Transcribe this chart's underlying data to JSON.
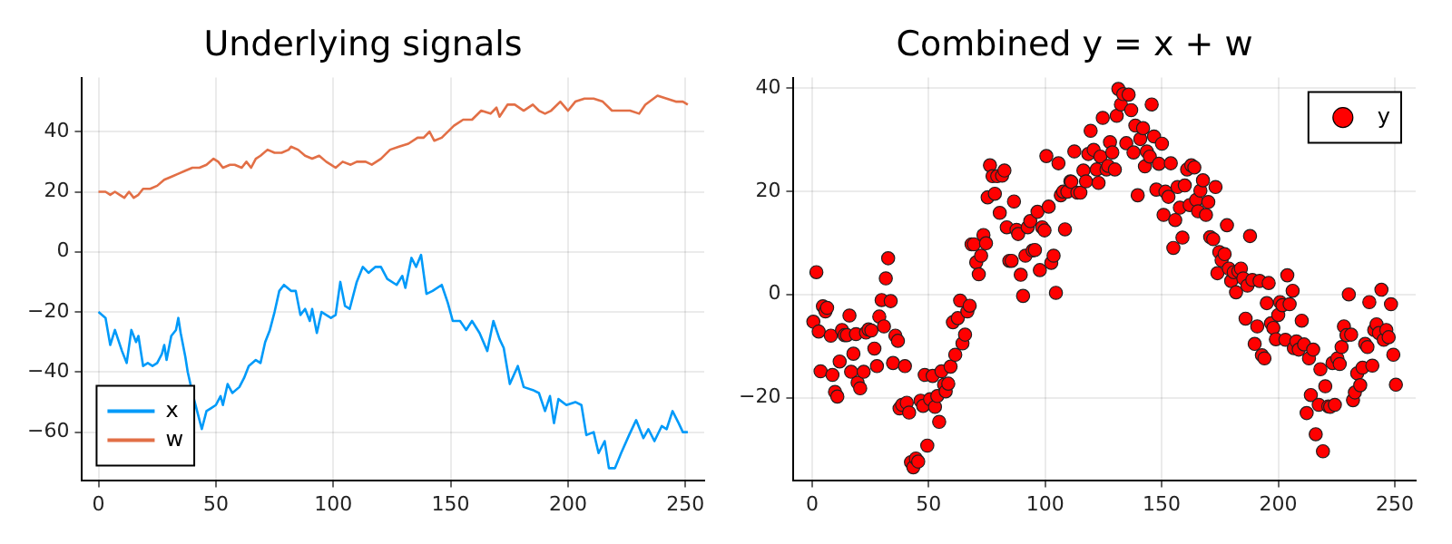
{
  "chart_data": [
    {
      "type": "line",
      "title": "Underlying signals",
      "xlim": [
        -7,
        258
      ],
      "xticks": [
        0,
        50,
        100,
        150,
        200,
        250
      ],
      "ylim": [
        -76,
        58
      ],
      "yticks": [
        {
          "value": -60,
          "label": "−60"
        },
        {
          "value": -40,
          "label": "−40"
        },
        {
          "value": -20,
          "label": "−20"
        },
        0,
        20,
        40
      ],
      "grid": true,
      "legend": "bottom left",
      "marker": "none",
      "line_style": "solid",
      "series": [
        {
          "name": "x",
          "color": "#009af9",
          "x": [
            0,
            3,
            5,
            7,
            10,
            12,
            14,
            16,
            17,
            19,
            21,
            23,
            25,
            27,
            28,
            29,
            31,
            33,
            34,
            35,
            37,
            38,
            40,
            42,
            44,
            46,
            48,
            50,
            52,
            53,
            55,
            57,
            60,
            62,
            64,
            67,
            69,
            71,
            73,
            75,
            77,
            79,
            82,
            84,
            86,
            88,
            90,
            91,
            93,
            95,
            97,
            99,
            101,
            103,
            105,
            107,
            110,
            112.6,
            115,
            118,
            120.3,
            123,
            127,
            129.4,
            130.7,
            133.3,
            135.3,
            137.4,
            139.7,
            142.3,
            146.2,
            148.8,
            150.9,
            154,
            156.6,
            159.1,
            162.3,
            165.6,
            168.2,
            170.8,
            172.6,
            175.2,
            178.6,
            181.1,
            185,
            187.6,
            190.2,
            192.3,
            194,
            195.9,
            199.3,
            203.1,
            205.7,
            207.8,
            210.9,
            213,
            215.6,
            217.4,
            220,
            222.6,
            226,
            229,
            232.1,
            234.2,
            236.8,
            239.9,
            242,
            244.5,
            247.1,
            248.9,
            251
          ],
          "values": [
            -20,
            -22,
            -31,
            -26,
            -33,
            -37,
            -26,
            -30,
            -28,
            -38,
            -37,
            -38,
            -37,
            -34,
            -31,
            -36,
            -28,
            -26,
            -22,
            -27,
            -35,
            -40,
            -47,
            -53,
            -59,
            -53,
            -52,
            -51,
            -48,
            -51,
            -44,
            -47,
            -45,
            -42,
            -38,
            -36,
            -37,
            -30,
            -26,
            -20,
            -13,
            -11,
            -13,
            -13,
            -21,
            -19,
            -23,
            -19,
            -27,
            -20,
            -21,
            -22,
            -21,
            -10,
            -18,
            -19,
            -10,
            -5,
            -7,
            -5,
            -5,
            -9,
            -11,
            -8,
            -12,
            -2,
            -5,
            -1,
            -14,
            -13,
            -11,
            -17,
            -23,
            -23,
            -26,
            -23,
            -27,
            -33,
            -23,
            -29,
            -32,
            -44,
            -38,
            -45,
            -46,
            -47,
            -53,
            -48,
            -57,
            -49,
            -51,
            -50,
            -51,
            -61,
            -60,
            -67,
            -63,
            -72,
            -72,
            -67,
            -61,
            -56,
            -62,
            -59,
            -63,
            -58,
            -59,
            -53,
            -57,
            -60,
            -60
          ]
        },
        {
          "name": "w",
          "color": "#e26f46",
          "x": [
            0,
            3,
            5,
            7,
            9,
            11,
            13,
            15,
            17,
            19,
            22,
            25,
            28,
            31,
            34,
            37,
            40,
            43,
            46,
            49,
            51,
            53,
            56,
            58,
            61,
            63,
            65,
            67,
            69,
            72,
            75,
            78,
            81,
            82,
            85,
            88,
            91,
            94,
            97,
            99,
            101,
            104,
            107.4,
            110,
            113.8,
            116.4,
            120.3,
            124.2,
            128,
            132,
            135.9,
            138.5,
            141,
            143,
            146.2,
            151.4,
            155.3,
            159.1,
            163,
            167,
            169.5,
            170.8,
            174.2,
            177.3,
            181.1,
            185,
            187.6,
            190.2,
            192.8,
            196.7,
            200,
            203.1,
            207,
            210.9,
            214.8,
            218.7,
            222.6,
            226.4,
            230.3,
            232.9,
            238.1,
            242,
            245.9,
            248.9,
            251
          ],
          "values": [
            20,
            20,
            19,
            20,
            19,
            18,
            20,
            18,
            19,
            21,
            21,
            22,
            24,
            25,
            26,
            27,
            28,
            28,
            29,
            31,
            30,
            28,
            29,
            29,
            28,
            30,
            28,
            31,
            32,
            34,
            33,
            33,
            34,
            35,
            34,
            32,
            31,
            32,
            30,
            29,
            28,
            30,
            29,
            30,
            30,
            29,
            31,
            34,
            35,
            36,
            38,
            38,
            40,
            37,
            38,
            42,
            44,
            44,
            47,
            46,
            48,
            45,
            49,
            49,
            47,
            49,
            47,
            46,
            47,
            50,
            47,
            50,
            51,
            51,
            50,
            47,
            47,
            47,
            46,
            49,
            52,
            51,
            50,
            50,
            49
          ]
        }
      ]
    },
    {
      "type": "scatter",
      "title": "Combined y = x + w",
      "xlim": [
        -8,
        259
      ],
      "xticks": [
        0,
        50,
        100,
        150,
        200,
        250
      ],
      "ylim": [
        -36,
        42
      ],
      "yticks": [
        {
          "value": -20,
          "label": "−20"
        },
        0,
        20,
        40
      ],
      "grid": true,
      "legend": "top right",
      "marker": "circle",
      "series": [
        {
          "name": "y",
          "color": "#ff0000",
          "x": [
            0.5,
            1.8,
            2.8,
            3.6,
            4.6,
            5.7,
            6.4,
            8,
            8.7,
            9.8,
            10.8,
            11.8,
            12.8,
            13.9,
            14.9,
            16,
            16.7,
            17.7,
            18.8,
            19.5,
            20.6,
            22.1,
            23.1,
            24.2,
            25.4,
            26.7,
            27.8,
            28.8,
            29.8,
            30.8,
            31.6,
            32.6,
            33.7,
            34.7,
            35.7,
            36.8,
            37.5,
            38.6,
            39.8,
            40.6,
            41.6,
            42.4,
            43.4,
            44.5,
            45.5,
            46.5,
            47.6,
            48.3,
            49.4,
            50.6,
            51.7,
            52.7,
            53.7,
            54.5,
            55.5,
            56.6,
            57.3,
            58.4,
            59.4,
            60.4,
            61.4,
            62.5,
            63.5,
            64.5,
            65.6,
            66.6,
            67.6,
            68.4,
            69.4,
            70.4,
            71.5,
            72.5,
            73.5,
            74.6,
            75.3,
            76.3,
            77.4,
            78.4,
            79.4,
            80.5,
            81.5,
            82.5,
            83.5,
            84.6,
            85.6,
            86.6,
            87.7,
            88.4,
            89.5,
            90.5,
            91.5,
            92.5,
            93.6,
            94.6,
            95.6,
            96.7,
            97.7,
            98.7,
            99.7,
            100.5,
            101.5,
            102.6,
            103.6,
            104.6,
            105.7,
            106.7,
            107.7,
            108.5,
            109.5,
            110.8,
            111.2,
            112.5,
            113.8,
            115.1,
            116.4,
            117.5,
            118.5,
            119.5,
            120.8,
            122.1,
            122.9,
            123.7,
            124.7,
            126.3,
            127,
            127.8,
            128.8,
            129.9,
            130.7,
            131.4,
            132.5,
            133.5,
            134.8,
            135.8,
            136.9,
            137.9,
            138.7,
            139.7,
            140.8,
            142,
            142.8,
            143.6,
            144.9,
            145.7,
            146.7,
            147.7,
            148.8,
            150.1,
            150.8,
            151.6,
            152.9,
            153.9,
            155,
            155.8,
            156.8,
            157.8,
            158.9,
            159.9,
            160.9,
            162,
            162.7,
            164,
            164.8,
            165.6,
            166.6,
            167.7,
            169,
            170,
            170.8,
            172.1,
            173.1,
            173.9,
            174.7,
            175.7,
            177,
            178,
            178.8,
            179.8,
            180.9,
            181.9,
            182.9,
            184,
            185,
            186,
            186.8,
            187.9,
            188.9,
            189.9,
            191,
            192,
            193,
            194.1,
            195.1,
            195.9,
            196.9,
            197.9,
            199,
            200,
            200.8,
            201.8,
            203.1,
            203.9,
            204.9,
            206.2,
            206.7,
            207.8,
            208.8,
            210.1,
            211.1,
            212.2,
            213.2,
            214,
            215,
            216.1,
            217.4,
            218.1,
            219.2,
            220.2,
            221.5,
            222.3,
            223.3,
            224.3,
            225.4,
            226.4,
            227.2,
            228.2,
            229.3,
            230.3,
            231.3,
            232.1,
            232.9,
            233.9,
            235.2,
            236.2,
            237.3,
            238.3,
            239.1,
            240.4,
            241.2,
            242.2,
            243.2,
            244.3,
            245.3,
            246.4,
            247.4,
            248.4,
            249.4,
            250.5
          ],
          "values": [
            -5.3,
            4.3,
            -7.2,
            -14.9,
            -2.3,
            -3.3,
            -2.6,
            -8,
            -15.6,
            -18.9,
            -19.8,
            -13,
            -6.9,
            -7.9,
            -7.9,
            -4.1,
            -15,
            -11.5,
            -7.7,
            -17.1,
            -18.2,
            -15,
            -7.4,
            -6.8,
            -7,
            -10.5,
            -13.9,
            -4.3,
            -1.1,
            -6.2,
            3.1,
            7,
            -1.3,
            -13.3,
            -8,
            -9,
            -22.1,
            -21.4,
            -13.9,
            -21,
            -22.9,
            -32.5,
            -33.5,
            -31.8,
            -32.4,
            -20.6,
            -21.6,
            -15.6,
            -29.3,
            -20.3,
            -15.8,
            -21.8,
            -19.7,
            -24.7,
            -14.9,
            -17.5,
            -18.8,
            -17.3,
            -14,
            -5.4,
            -11.7,
            -4.6,
            -1.2,
            -9.5,
            -7.8,
            -3.3,
            -2.2,
            9.7,
            9.7,
            6.2,
            3.9,
            7.5,
            11.5,
            9.9,
            18.8,
            25,
            22.9,
            19.5,
            22.9,
            15.8,
            23,
            24,
            13,
            6.5,
            6.5,
            18,
            12.5,
            11.7,
            3.8,
            -0.3,
            7.5,
            13,
            14.2,
            8.5,
            8.6,
            16,
            4.7,
            13,
            12.4,
            26.8,
            17,
            6.1,
            7.5,
            0.3,
            25.4,
            19.2,
            19.9,
            12.6,
            19.9,
            21.9,
            21.8,
            27.7,
            19.7,
            19.7,
            24,
            21.9,
            27.2,
            31.7,
            28,
            24.2,
            21.6,
            26.7,
            34.2,
            24.2,
            24.9,
            29.5,
            27.5,
            24.2,
            34.6,
            39.8,
            36.8,
            38.8,
            29.3,
            38.7,
            35.7,
            27.5,
            32.7,
            19.2,
            30.1,
            32.2,
            24.8,
            27.7,
            26.7,
            36.8,
            30.6,
            20.3,
            25.3,
            29.2,
            15.4,
            19.9,
            18.9,
            25.4,
            9,
            14.4,
            20.8,
            16.8,
            11,
            21.1,
            24.2,
            17.3,
            25,
            24.6,
            18.3,
            16.1,
            20.1,
            22.1,
            15.4,
            17.9,
            11.1,
            10.7,
            20.8,
            4.1,
            8.2,
            6.6,
            7.8,
            13.4,
            5,
            2.6,
            4.3,
            0.4,
            4.5,
            5,
            3.1,
            -4.7,
            1.7,
            11.3,
            2.8,
            -9.6,
            -6.2,
            2.6,
            -11.8,
            -12.4,
            -1.7,
            2.2,
            -5.6,
            -6.5,
            -8.7,
            -4,
            -1.5,
            -2.1,
            -8.8,
            3.7,
            -1.9,
            0.7,
            -10.4,
            -9.1,
            -10.7,
            -5.1,
            -9.7,
            -23,
            -12.4,
            -19.5,
            -10.7,
            -27.1,
            -21.4,
            -14.5,
            -30.4,
            -17.8,
            -21.7,
            -21.8,
            -13.3,
            -21.4,
            -12.4,
            -13.5,
            -10.2,
            -6.2,
            -7.9,
            0,
            -7.8,
            -20.5,
            -19,
            -15.3,
            -17.6,
            -14.2,
            -9.6,
            -10.2,
            -1.5,
            -13.8,
            -6.9,
            -5.8,
            -7.5,
            0.9,
            -8.8,
            -6.9,
            -8.3,
            -1.9,
            -11.7,
            -17.5
          ]
        }
      ]
    }
  ]
}
